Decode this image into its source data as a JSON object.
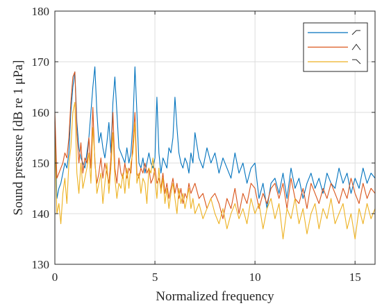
{
  "chart_data": {
    "type": "line",
    "xlabel": "Normalized frequency",
    "ylabel": "Sound pressure [dB re 1 μPa]",
    "xlim": [
      0,
      16
    ],
    "ylim": [
      130,
      180
    ],
    "xticks": [
      0,
      5,
      10,
      15
    ],
    "yticks": [
      130,
      140,
      150,
      160,
      170,
      180
    ],
    "grid": true,
    "legend_position": "top-right",
    "legend_entries": "glyphs only (rising, peaked, falling)",
    "series": [
      {
        "color": "#0072bd",
        "legend_glyph": "rising",
        "x": [
          0,
          0.1,
          0.2,
          0.3,
          0.4,
          0.5,
          0.6,
          0.7,
          0.8,
          0.9,
          1.0,
          1.1,
          1.2,
          1.3,
          1.4,
          1.5,
          1.6,
          1.7,
          1.8,
          1.9,
          2.0,
          2.1,
          2.2,
          2.3,
          2.4,
          2.5,
          2.6,
          2.7,
          2.8,
          2.9,
          3.0,
          3.1,
          3.2,
          3.3,
          3.4,
          3.5,
          3.6,
          3.7,
          3.8,
          3.9,
          4.0,
          4.1,
          4.2,
          4.3,
          4.4,
          4.5,
          4.6,
          4.7,
          4.8,
          4.9,
          5.0,
          5.1,
          5.2,
          5.3,
          5.4,
          5.5,
          5.6,
          5.7,
          5.8,
          5.9,
          6.0,
          6.1,
          6.2,
          6.3,
          6.4,
          6.5,
          6.6,
          6.7,
          6.8,
          6.9,
          7.0,
          7.2,
          7.4,
          7.6,
          7.8,
          8.0,
          8.2,
          8.4,
          8.6,
          8.8,
          9.0,
          9.2,
          9.4,
          9.6,
          9.8,
          10.0,
          10.2,
          10.4,
          10.6,
          10.8,
          11.0,
          11.2,
          11.4,
          11.6,
          11.8,
          12.0,
          12.2,
          12.4,
          12.6,
          12.8,
          13.0,
          13.2,
          13.4,
          13.6,
          13.8,
          14.0,
          14.2,
          14.4,
          14.6,
          14.8,
          15.0,
          15.2,
          15.4,
          15.6,
          15.8,
          16.0
        ],
        "y": [
          158,
          143,
          145,
          146,
          148,
          150,
          149,
          152,
          160,
          165,
          168,
          158,
          153,
          151,
          150,
          149,
          152,
          155,
          160,
          165,
          169,
          160,
          154,
          156,
          153,
          151,
          154,
          158,
          152,
          162,
          167,
          160,
          153,
          152,
          151,
          150,
          153,
          150,
          152,
          158,
          169,
          160,
          150,
          149,
          151,
          148,
          150,
          152,
          150,
          149,
          151,
          163,
          152,
          148,
          151,
          150,
          149,
          153,
          152,
          155,
          163,
          157,
          152,
          150,
          149,
          151,
          150,
          148,
          152,
          150,
          156,
          151,
          149,
          153,
          150,
          152,
          148,
          151,
          149,
          147,
          152,
          148,
          150,
          146,
          149,
          150,
          143,
          146,
          141,
          146,
          147,
          144,
          148,
          143,
          149,
          145,
          147,
          143,
          146,
          148,
          145,
          147,
          144,
          148,
          146,
          145,
          149,
          146,
          148,
          144,
          147,
          145,
          149,
          146,
          148,
          147
        ]
      },
      {
        "color": "#d95319",
        "legend_glyph": "peaked",
        "x": [
          0,
          0.1,
          0.2,
          0.3,
          0.4,
          0.5,
          0.6,
          0.7,
          0.8,
          0.9,
          1.0,
          1.1,
          1.2,
          1.3,
          1.4,
          1.5,
          1.6,
          1.7,
          1.8,
          1.9,
          2.0,
          2.1,
          2.2,
          2.3,
          2.4,
          2.5,
          2.6,
          2.7,
          2.8,
          2.9,
          3.0,
          3.1,
          3.2,
          3.3,
          3.4,
          3.5,
          3.6,
          3.7,
          3.8,
          3.9,
          4.0,
          4.1,
          4.2,
          4.3,
          4.4,
          4.5,
          4.6,
          4.7,
          4.8,
          4.9,
          5.0,
          5.1,
          5.2,
          5.3,
          5.4,
          5.5,
          5.6,
          5.7,
          5.8,
          5.9,
          6.0,
          6.1,
          6.2,
          6.3,
          6.4,
          6.5,
          6.6,
          6.7,
          6.8,
          6.9,
          7.0,
          7.2,
          7.4,
          7.6,
          7.8,
          8.0,
          8.2,
          8.4,
          8.6,
          8.8,
          9.0,
          9.2,
          9.4,
          9.6,
          9.8,
          10.0,
          10.2,
          10.4,
          10.6,
          10.8,
          11.0,
          11.2,
          11.4,
          11.6,
          11.8,
          12.0,
          12.2,
          12.4,
          12.6,
          12.8,
          13.0,
          13.2,
          13.4,
          13.6,
          13.8,
          14.0,
          14.2,
          14.4,
          14.6,
          14.8,
          15.0,
          15.2,
          15.4,
          15.6,
          15.8,
          16.0
        ],
        "y": [
          160,
          147,
          148,
          149,
          150,
          152,
          151,
          155,
          162,
          167,
          168,
          156,
          150,
          154,
          148,
          151,
          150,
          155,
          149,
          161,
          150,
          146,
          148,
          151,
          147,
          150,
          148,
          146,
          151,
          160,
          149,
          146,
          151,
          148,
          147,
          150,
          147,
          149,
          148,
          154,
          160,
          148,
          147,
          149,
          148,
          150,
          148,
          149,
          146,
          147,
          149,
          146,
          147,
          145,
          148,
          144,
          146,
          143,
          145,
          147,
          144,
          146,
          143,
          145,
          142,
          144,
          143,
          146,
          144,
          145,
          146,
          143,
          144,
          141,
          143,
          144,
          142,
          139,
          143,
          141,
          145,
          140,
          144,
          142,
          146,
          145,
          141,
          144,
          142,
          145,
          146,
          143,
          146,
          141,
          147,
          143,
          142,
          145,
          141,
          146,
          144,
          142,
          145,
          143,
          146,
          144,
          142,
          145,
          143,
          147,
          144,
          142,
          146,
          143,
          145,
          144
        ]
      },
      {
        "color": "#edb120",
        "legend_glyph": "falling",
        "x": [
          0,
          0.1,
          0.2,
          0.3,
          0.4,
          0.5,
          0.6,
          0.7,
          0.8,
          0.9,
          1.0,
          1.1,
          1.2,
          1.3,
          1.4,
          1.5,
          1.6,
          1.7,
          1.8,
          1.9,
          2.0,
          2.1,
          2.2,
          2.3,
          2.4,
          2.5,
          2.6,
          2.7,
          2.8,
          2.9,
          3.0,
          3.1,
          3.2,
          3.3,
          3.4,
          3.5,
          3.6,
          3.7,
          3.8,
          3.9,
          4.0,
          4.1,
          4.2,
          4.3,
          4.4,
          4.5,
          4.6,
          4.7,
          4.8,
          4.9,
          5.0,
          5.1,
          5.2,
          5.3,
          5.4,
          5.5,
          5.6,
          5.7,
          5.8,
          5.9,
          6.0,
          6.1,
          6.2,
          6.3,
          6.4,
          6.5,
          6.6,
          6.7,
          6.8,
          6.9,
          7.0,
          7.2,
          7.4,
          7.6,
          7.8,
          8.0,
          8.2,
          8.4,
          8.6,
          8.8,
          9.0,
          9.2,
          9.4,
          9.6,
          9.8,
          10.0,
          10.2,
          10.4,
          10.6,
          10.8,
          11.0,
          11.2,
          11.4,
          11.6,
          11.8,
          12.0,
          12.2,
          12.4,
          12.6,
          12.8,
          13.0,
          13.2,
          13.4,
          13.6,
          13.8,
          14.0,
          14.2,
          14.4,
          14.6,
          14.8,
          15.0,
          15.2,
          15.4,
          15.6,
          15.8,
          16.0
        ],
        "y": [
          155,
          140,
          142,
          138,
          144,
          147,
          142,
          150,
          153,
          160,
          162,
          148,
          144,
          150,
          145,
          147,
          149,
          152,
          146,
          157,
          151,
          144,
          146,
          148,
          142,
          146,
          150,
          144,
          149,
          156,
          147,
          143,
          146,
          145,
          148,
          144,
          149,
          145,
          150,
          152,
          158,
          146,
          148,
          144,
          147,
          146,
          142,
          149,
          148,
          151,
          147,
          143,
          149,
          144,
          147,
          142,
          145,
          141,
          144,
          146,
          143,
          140,
          145,
          142,
          144,
          141,
          143,
          145,
          141,
          143,
          140,
          142,
          139,
          141,
          143,
          140,
          138,
          141,
          137,
          140,
          142,
          139,
          141,
          138,
          143,
          140,
          142,
          137,
          141,
          143,
          139,
          142,
          135,
          141,
          139,
          143,
          138,
          141,
          136,
          140,
          142,
          137,
          141,
          139,
          143,
          138,
          140,
          142,
          137,
          140,
          135,
          141,
          138,
          142,
          139,
          141
        ]
      }
    ]
  }
}
